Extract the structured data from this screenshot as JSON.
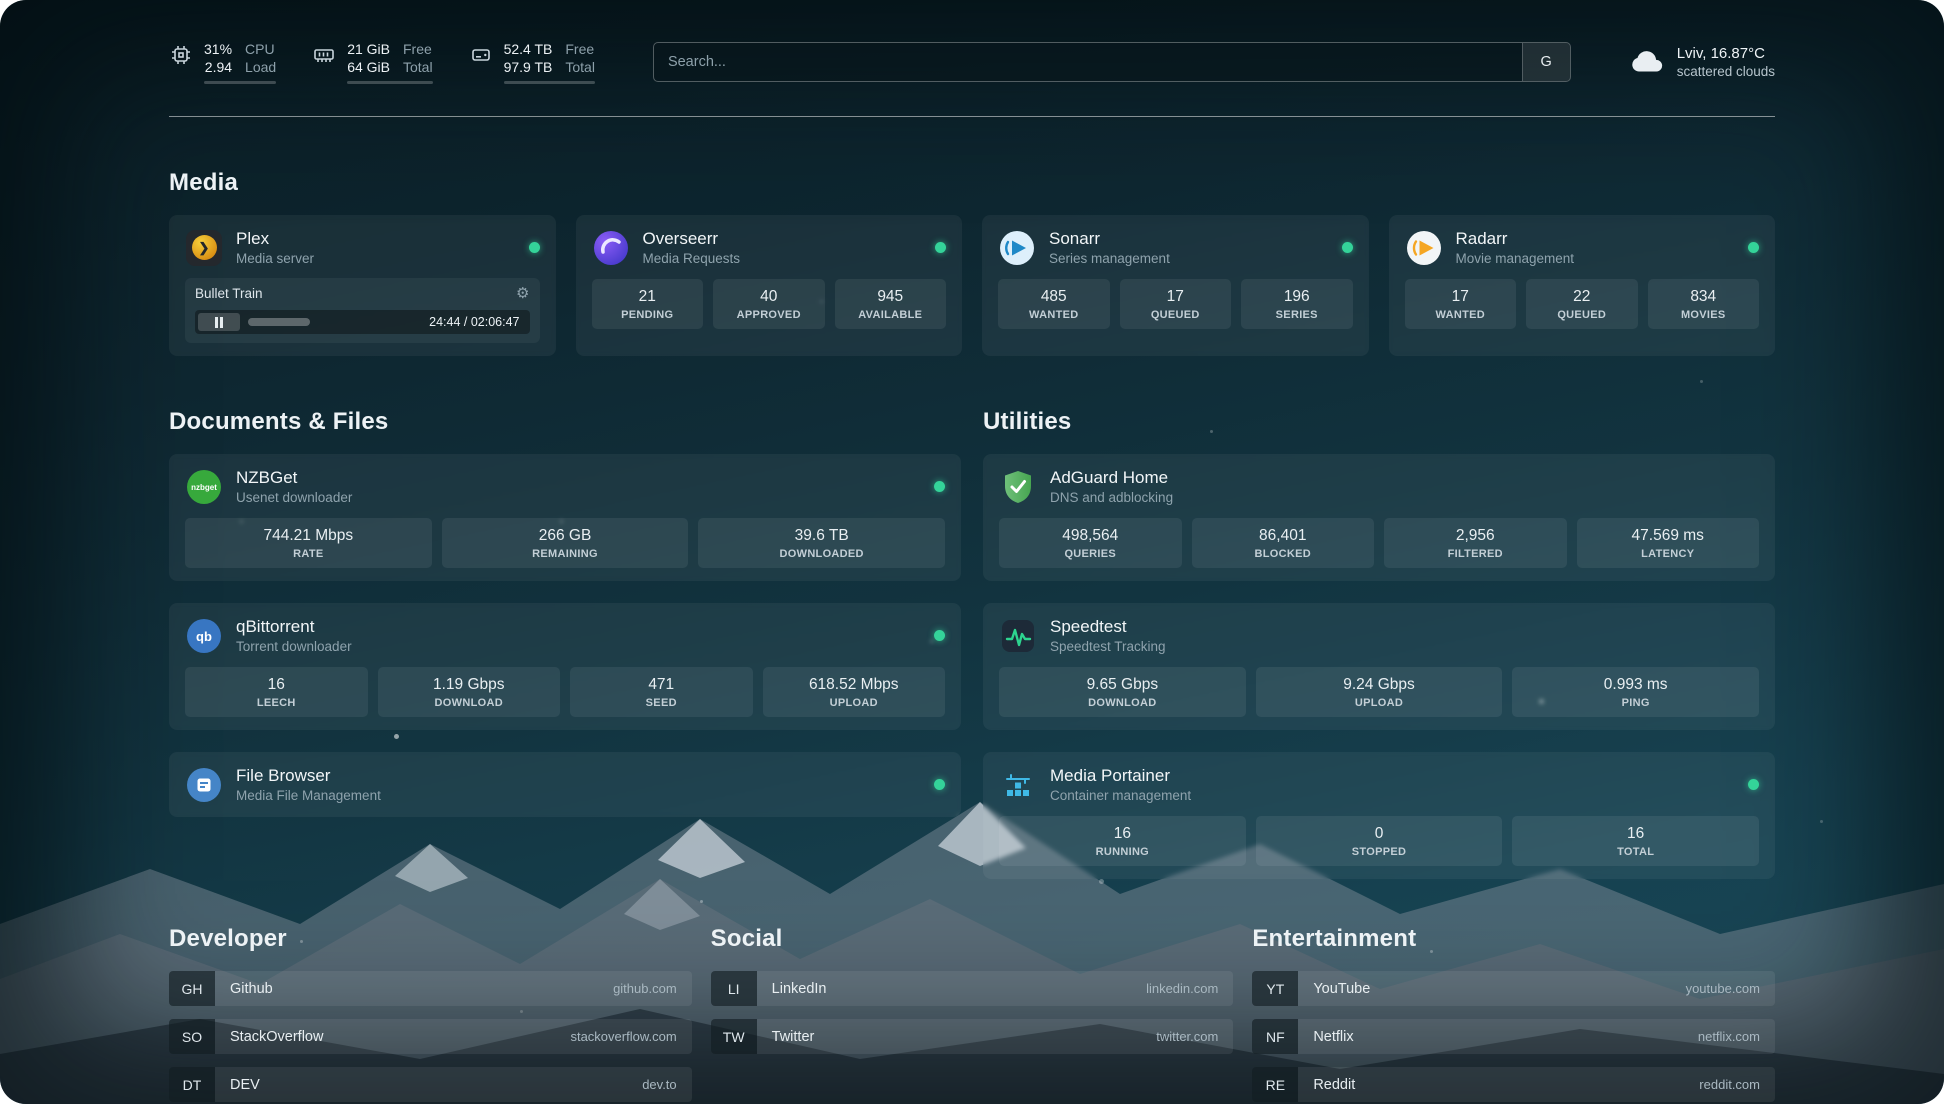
{
  "topbar": {
    "cpu": {
      "percent": "31%",
      "load": "2.94",
      "label_top": "CPU",
      "label_bottom": "Load",
      "bar_percent": 31
    },
    "memory": {
      "free": "21 GiB",
      "total": "64 GiB",
      "label_top": "Free",
      "label_bottom": "Total",
      "bar_percent": 67
    },
    "disk": {
      "free": "52.4 TB",
      "total": "97.9 TB",
      "label_top": "Free",
      "label_bottom": "Total",
      "bar_percent": 46
    },
    "search": {
      "placeholder": "Search...",
      "provider_button": "G"
    },
    "weather": {
      "location": "Lviv, 16.87°C",
      "condition": "scattered clouds"
    }
  },
  "sections": {
    "media": {
      "title": "Media",
      "plex": {
        "name": "Plex",
        "description": "Media server",
        "now_playing": {
          "title": "Bullet Train",
          "time": "24:44 / 02:06:47",
          "progress_percent": 19
        }
      },
      "overseerr": {
        "name": "Overseerr",
        "description": "Media Requests",
        "stats": [
          {
            "value": "21",
            "label": "PENDING"
          },
          {
            "value": "40",
            "label": "APPROVED"
          },
          {
            "value": "945",
            "label": "AVAILABLE"
          }
        ]
      },
      "sonarr": {
        "name": "Sonarr",
        "description": "Series management",
        "stats": [
          {
            "value": "485",
            "label": "WANTED"
          },
          {
            "value": "17",
            "label": "QUEUED"
          },
          {
            "value": "196",
            "label": "SERIES"
          }
        ]
      },
      "radarr": {
        "name": "Radarr",
        "description": "Movie management",
        "stats": [
          {
            "value": "17",
            "label": "WANTED"
          },
          {
            "value": "22",
            "label": "QUEUED"
          },
          {
            "value": "834",
            "label": "MOVIES"
          }
        ]
      }
    },
    "documents": {
      "title": "Documents & Files",
      "nzbget": {
        "name": "NZBGet",
        "description": "Usenet downloader",
        "stats": [
          {
            "value": "744.21 Mbps",
            "label": "RATE"
          },
          {
            "value": "266 GB",
            "label": "REMAINING"
          },
          {
            "value": "39.6 TB",
            "label": "DOWNLOADED"
          }
        ]
      },
      "qbittorrent": {
        "name": "qBittorrent",
        "description": "Torrent downloader",
        "stats": [
          {
            "value": "16",
            "label": "LEECH"
          },
          {
            "value": "1.19 Gbps",
            "label": "DOWNLOAD"
          },
          {
            "value": "471",
            "label": "SEED"
          },
          {
            "value": "618.52 Mbps",
            "label": "UPLOAD"
          }
        ]
      },
      "filebrowser": {
        "name": "File Browser",
        "description": "Media File Management"
      }
    },
    "utilities": {
      "title": "Utilities",
      "adguard": {
        "name": "AdGuard Home",
        "description": "DNS and adblocking",
        "stats": [
          {
            "value": "498,564",
            "label": "QUERIES"
          },
          {
            "value": "86,401",
            "label": "BLOCKED"
          },
          {
            "value": "2,956",
            "label": "FILTERED"
          },
          {
            "value": "47.569 ms",
            "label": "LATENCY"
          }
        ]
      },
      "speedtest": {
        "name": "Speedtest",
        "description": "Speedtest Tracking",
        "stats": [
          {
            "value": "9.65 Gbps",
            "label": "DOWNLOAD"
          },
          {
            "value": "9.24 Gbps",
            "label": "UPLOAD"
          },
          {
            "value": "0.993 ms",
            "label": "PING"
          }
        ]
      },
      "portainer": {
        "name": "Media Portainer",
        "description": "Container management",
        "stats": [
          {
            "value": "16",
            "label": "RUNNING"
          },
          {
            "value": "0",
            "label": "STOPPED"
          },
          {
            "value": "16",
            "label": "TOTAL"
          }
        ]
      }
    }
  },
  "bookmarks": {
    "developer": {
      "title": "Developer",
      "items": [
        {
          "abbr": "GH",
          "name": "Github",
          "domain": "github.com"
        },
        {
          "abbr": "SO",
          "name": "StackOverflow",
          "domain": "stackoverflow.com"
        },
        {
          "abbr": "DT",
          "name": "DEV",
          "domain": "dev.to"
        }
      ]
    },
    "social": {
      "title": "Social",
      "items": [
        {
          "abbr": "LI",
          "name": "LinkedIn",
          "domain": "linkedin.com"
        },
        {
          "abbr": "TW",
          "name": "Twitter",
          "domain": "twitter.com"
        }
      ]
    },
    "entertainment": {
      "title": "Entertainment",
      "items": [
        {
          "abbr": "YT",
          "name": "YouTube",
          "domain": "youtube.com"
        },
        {
          "abbr": "NF",
          "name": "Netflix",
          "domain": "netflix.com"
        },
        {
          "abbr": "RE",
          "name": "Reddit",
          "domain": "reddit.com"
        }
      ]
    }
  },
  "icons": {
    "nzbget_text": "nzbget",
    "qbittorrent_text": "qb"
  },
  "colors": {
    "status_online": "#34d399",
    "accent_green": "#2dd48f"
  }
}
